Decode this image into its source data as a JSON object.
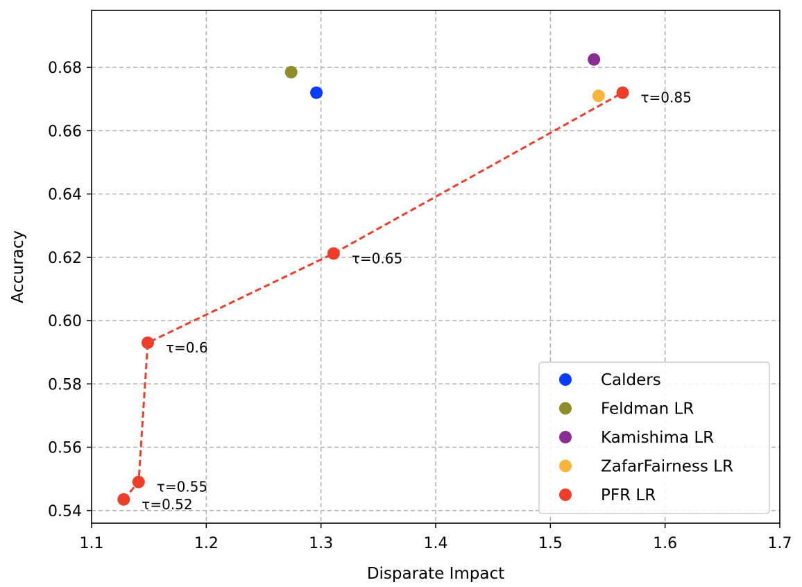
{
  "chart_data": {
    "type": "scatter",
    "xlabel": "Disparate Impact",
    "ylabel": "Accuracy",
    "xlim": [
      1.1,
      1.7
    ],
    "ylim": [
      0.536,
      0.698
    ],
    "x_ticks": [
      1.1,
      1.2,
      1.3,
      1.4,
      1.5,
      1.6,
      1.7
    ],
    "x_tick_labels": [
      "1.1",
      "1.2",
      "1.3",
      "1.4",
      "1.5",
      "1.6",
      "1.7"
    ],
    "y_ticks": [
      0.54,
      0.56,
      0.58,
      0.6,
      0.62,
      0.64,
      0.66,
      0.68
    ],
    "y_tick_labels": [
      "0.54",
      "0.56",
      "0.58",
      "0.60",
      "0.62",
      "0.64",
      "0.66",
      "0.68"
    ],
    "grid": true,
    "legend_position": "bottom-right",
    "series": [
      {
        "name": "Calders",
        "color": "#0a3cff",
        "points": [
          {
            "x": 1.296,
            "y": 0.672
          }
        ]
      },
      {
        "name": "Feldman LR",
        "color": "#8f8c2a",
        "points": [
          {
            "x": 1.274,
            "y": 0.6785
          }
        ]
      },
      {
        "name": "Kamishima LR",
        "color": "#8a2d93",
        "points": [
          {
            "x": 1.538,
            "y": 0.6825
          }
        ]
      },
      {
        "name": "ZafarFairness LR",
        "color": "#f9b43c",
        "points": [
          {
            "x": 1.542,
            "y": 0.671
          }
        ]
      },
      {
        "name": "PFR LR",
        "color": "#ee3e29",
        "line": "dashed",
        "points": [
          {
            "x": 1.128,
            "y": 0.5435,
            "label": "τ=0.52"
          },
          {
            "x": 1.141,
            "y": 0.549,
            "label": "τ=0.55"
          },
          {
            "x": 1.149,
            "y": 0.593,
            "label": "τ=0.6"
          },
          {
            "x": 1.311,
            "y": 0.6212,
            "label": "τ=0.65"
          },
          {
            "x": 1.563,
            "y": 0.672,
            "label": "τ=0.85"
          }
        ]
      }
    ]
  }
}
